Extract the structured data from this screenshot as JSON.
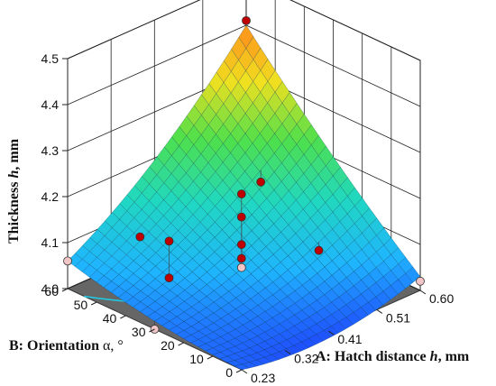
{
  "chart_data": {
    "type": "surface",
    "z_axis": {
      "label_main": "Thickness ",
      "label_symbol": "h",
      "label_unit": ", mm",
      "ticks": [
        4.0,
        4.1,
        4.2,
        4.3,
        4.4,
        4.5
      ],
      "tick_labels": [
        "4.0",
        "4.1",
        "4.2",
        "4.3",
        "4.4",
        "4.5"
      ],
      "range": [
        4.0,
        4.5
      ]
    },
    "a_axis": {
      "label_main": "A: Hatch distance ",
      "label_symbol": "h",
      "label_unit": ", mm",
      "ticks": [
        0.23,
        0.32,
        0.41,
        0.51,
        0.6
      ],
      "tick_labels": [
        "0.23",
        "0.32",
        "0.41",
        "0.51",
        "0.60"
      ],
      "range": [
        0.23,
        0.6
      ]
    },
    "b_axis": {
      "label_main": "B: Orientation ",
      "label_symbol": "α",
      "label_unit": ", °",
      "ticks": [
        0,
        10,
        20,
        30,
        40,
        50,
        60
      ],
      "tick_labels": [
        "0",
        "10",
        "20",
        "30",
        "40",
        "50",
        "60"
      ],
      "range": [
        0,
        60
      ]
    },
    "surface_corners": {
      "note_units": "thickness at (A,B)",
      "A0.23_B0": 4.0,
      "A0.6_B0": 4.03,
      "A0.23_B60": 4.06,
      "A0.6_B60": 4.4
    },
    "design_points": [
      {
        "a": 0.6,
        "b": 60,
        "z": 4.41,
        "above": true
      },
      {
        "a": 0.23,
        "b": 60,
        "z": 4.06,
        "above": false
      },
      {
        "a": 0.23,
        "b": 30,
        "z": 4.0,
        "above": false
      },
      {
        "a": 0.6,
        "b": 0,
        "z": 4.02,
        "above": false
      },
      {
        "a": 0.41,
        "b": 30,
        "z": 4.05,
        "above": false
      },
      {
        "a": 0.41,
        "b": 30,
        "z": 4.21,
        "above": true
      },
      {
        "a": 0.41,
        "b": 30,
        "z": 4.16,
        "above": true
      },
      {
        "a": 0.41,
        "b": 30,
        "z": 4.1,
        "above": true
      },
      {
        "a": 0.41,
        "b": 30,
        "z": 4.07,
        "above": true
      },
      {
        "a": 0.32,
        "b": 50,
        "z": 4.1,
        "above": true
      },
      {
        "a": 0.32,
        "b": 40,
        "z": 4.12,
        "above": true
      },
      {
        "a": 0.32,
        "b": 40,
        "z": 4.04,
        "above": true
      },
      {
        "a": 0.51,
        "b": 40,
        "z": 4.16,
        "above": true
      },
      {
        "a": 0.51,
        "b": 20,
        "z": 4.07,
        "above": true
      }
    ],
    "floor_color": "#666666",
    "colormap": [
      "#1f3cff",
      "#1fb4ff",
      "#20d8c0",
      "#4fe04a",
      "#f0e020",
      "#ff8a1a"
    ],
    "point_color": "#c00000",
    "below_point_color": "#f2c6c6"
  }
}
